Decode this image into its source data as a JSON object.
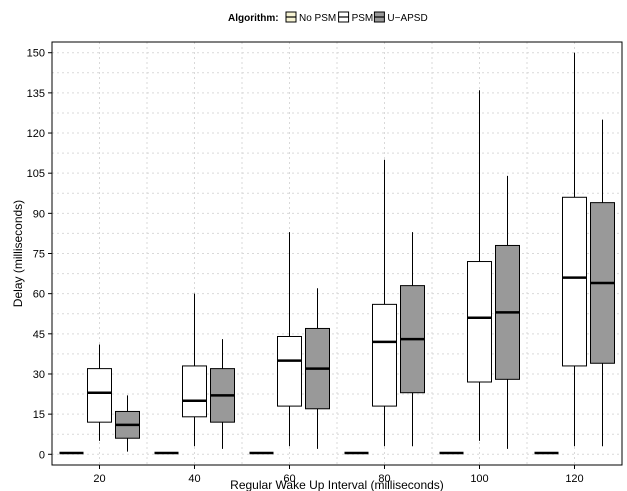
{
  "chart_data": {
    "type": "box",
    "xlabel": "Regular Wake Up Interval (milliseconds)",
    "ylabel": "Delay (milliseconds)",
    "ylim": [
      -4,
      154
    ],
    "yticks": [
      0,
      15,
      30,
      45,
      60,
      75,
      90,
      105,
      120,
      135,
      150
    ],
    "categories": [
      "20",
      "40",
      "60",
      "80",
      "100",
      "120"
    ],
    "grid": true,
    "legend": {
      "title": "Algorithm:",
      "position": "top",
      "entries": [
        "No PSM",
        "PSM",
        "U−APSD"
      ]
    },
    "series": [
      {
        "name": "No PSM",
        "color": "#ffffff",
        "legend_color": "#f6f3d3",
        "boxes": [
          {
            "min": 0.5,
            "q1": 0.5,
            "median": 0.5,
            "q3": 0.5,
            "max": 0.5
          },
          {
            "min": 0.5,
            "q1": 0.5,
            "median": 0.5,
            "q3": 0.5,
            "max": 0.5
          },
          {
            "min": 0.5,
            "q1": 0.5,
            "median": 0.5,
            "q3": 0.5,
            "max": 0.5
          },
          {
            "min": 0.5,
            "q1": 0.5,
            "median": 0.5,
            "q3": 0.5,
            "max": 0.5
          },
          {
            "min": 0.5,
            "q1": 0.5,
            "median": 0.5,
            "q3": 0.5,
            "max": 0.5
          },
          {
            "min": 0.5,
            "q1": 0.5,
            "median": 0.5,
            "q3": 0.5,
            "max": 0.5
          }
        ]
      },
      {
        "name": "PSM",
        "color": "#ffffff",
        "legend_color": "#ffffff",
        "boxes": [
          {
            "min": 5,
            "q1": 12,
            "median": 23,
            "q3": 32,
            "max": 41
          },
          {
            "min": 3,
            "q1": 14,
            "median": 20,
            "q3": 33,
            "max": 60
          },
          {
            "min": 3,
            "q1": 18,
            "median": 35,
            "q3": 44,
            "max": 83
          },
          {
            "min": 3,
            "q1": 18,
            "median": 42,
            "q3": 56,
            "max": 110
          },
          {
            "min": 5,
            "q1": 27,
            "median": 51,
            "q3": 72,
            "max": 136
          },
          {
            "min": 3,
            "q1": 33,
            "median": 66,
            "q3": 96,
            "max": 150
          }
        ]
      },
      {
        "name": "U−APSD",
        "color": "#999999",
        "legend_color": "#999999",
        "boxes": [
          {
            "min": 1,
            "q1": 6,
            "median": 11,
            "q3": 16,
            "max": 22
          },
          {
            "min": 2,
            "q1": 12,
            "median": 22,
            "q3": 32,
            "max": 43
          },
          {
            "min": 2,
            "q1": 17,
            "median": 32,
            "q3": 47,
            "max": 62
          },
          {
            "min": 3,
            "q1": 23,
            "median": 43,
            "q3": 63,
            "max": 83
          },
          {
            "min": 2,
            "q1": 28,
            "median": 53,
            "q3": 78,
            "max": 104
          },
          {
            "min": 3,
            "q1": 34,
            "median": 64,
            "q3": 94,
            "max": 125
          }
        ]
      }
    ]
  }
}
